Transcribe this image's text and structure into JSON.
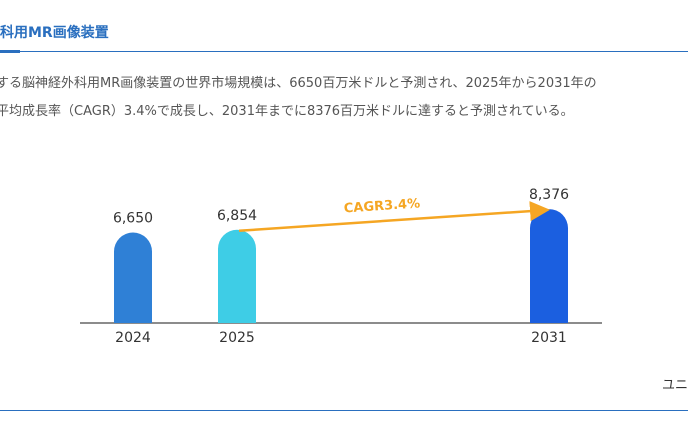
{
  "header": {
    "title": "科用MR画像装置"
  },
  "intro": [
    "する脳神経外科用MR画像装置の世界市場規模は、6650百万米ドルと予測され、2025年から2031年の",
    "平均成長率（CAGR）3.4%で成長し、2031年までに8376百万米ドルに達すると予測されている。"
  ],
  "chart_data": {
    "type": "bar",
    "categories": [
      "2024",
      "2025",
      "2031"
    ],
    "values": [
      6650,
      6854,
      8376
    ],
    "value_labels": [
      "6,650",
      "6,854",
      "8,376"
    ],
    "colors": [
      "#2f80d6",
      "#3ecde6",
      "#1b5fe0"
    ],
    "ylim": [
      0,
      10000
    ],
    "annotation": "CAGR3.4%",
    "annotation_color": "#f5a623"
  },
  "footer": {
    "unit_label": "ユニ"
  }
}
